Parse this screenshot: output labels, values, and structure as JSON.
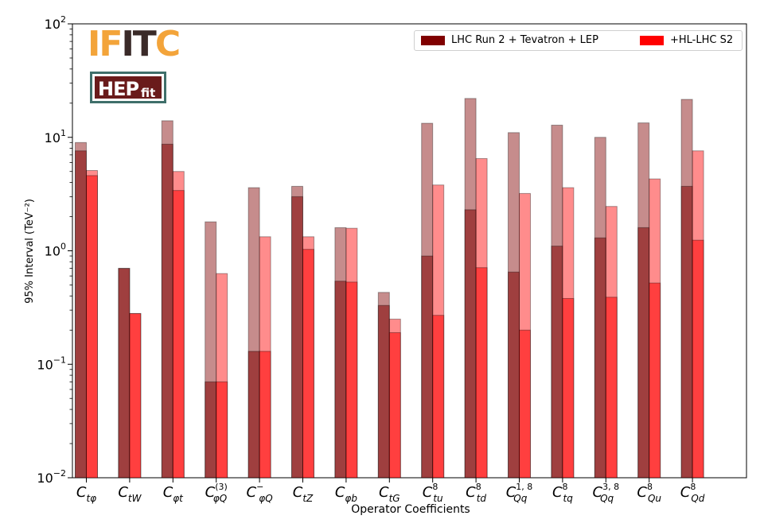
{
  "chart_data": {
    "type": "bar",
    "yscale": "log",
    "ylim": [
      0.01,
      100
    ],
    "ylabel": "95% Interval (TeV⁻²)",
    "xlabel": "Operator Coefficients",
    "y_tick_labels": [
      {
        "value": 0.01,
        "base": "10",
        "exp": "−2"
      },
      {
        "value": 0.1,
        "base": "10",
        "exp": "−1"
      },
      {
        "value": 1,
        "base": "10",
        "exp": "0"
      },
      {
        "value": 10,
        "base": "10",
        "exp": "1"
      },
      {
        "value": 100,
        "base": "10",
        "exp": "2"
      }
    ],
    "categories": [
      {
        "base": "C",
        "sub": "tφ",
        "sup": ""
      },
      {
        "base": "C",
        "sub": "tW",
        "sup": ""
      },
      {
        "base": "C",
        "sub": "φt",
        "sup": ""
      },
      {
        "base": "C",
        "sub": "φQ",
        "sup": "(3)"
      },
      {
        "base": "C",
        "sub": "φQ",
        "sup": "−"
      },
      {
        "base": "C",
        "sub": "tZ",
        "sup": ""
      },
      {
        "base": "C",
        "sub": "φb",
        "sup": ""
      },
      {
        "base": "C",
        "sub": "tG",
        "sup": ""
      },
      {
        "base": "C",
        "sub": "tu",
        "sup": "8"
      },
      {
        "base": "C",
        "sub": "td",
        "sup": "8"
      },
      {
        "base": "C",
        "sub": "Qq",
        "sup": "1, 8"
      },
      {
        "base": "C",
        "sub": "tq",
        "sup": "8"
      },
      {
        "base": "C",
        "sub": "Qq",
        "sup": "3, 8"
      },
      {
        "base": "C",
        "sub": "Qu",
        "sup": "8"
      },
      {
        "base": "C",
        "sub": "Qd",
        "sup": "8"
      }
    ],
    "series": [
      {
        "name": "LHC Run 2 + Tevatron + LEP",
        "color": "#800000",
        "individual": [
          7.6,
          0.7,
          8.7,
          0.07,
          0.13,
          3.0,
          0.54,
          0.33,
          0.9,
          2.3,
          0.65,
          1.1,
          1.3,
          1.6,
          3.7
        ],
        "marginalised": [
          9.0,
          0.7,
          14.0,
          1.8,
          3.6,
          3.7,
          1.6,
          0.43,
          13.3,
          22.0,
          11.0,
          12.8,
          10.0,
          13.4,
          21.6
        ]
      },
      {
        "name": "+HL-LHC S2",
        "color": "#ff0000",
        "individual": [
          4.6,
          0.28,
          3.4,
          0.07,
          0.13,
          1.03,
          0.53,
          0.19,
          0.27,
          0.71,
          0.2,
          0.38,
          0.39,
          0.52,
          1.24
        ],
        "marginalised": [
          5.1,
          0.28,
          5.0,
          0.63,
          1.33,
          1.33,
          1.58,
          0.25,
          3.8,
          6.5,
          3.2,
          3.6,
          2.46,
          4.3,
          7.6
        ]
      }
    ],
    "legend_position": "top-right"
  },
  "logos": {
    "ifit": {
      "part1": "IF",
      "part2": "IT",
      "part3": "C"
    },
    "hepfit": {
      "main": "HEP",
      "sub": "fit"
    }
  }
}
